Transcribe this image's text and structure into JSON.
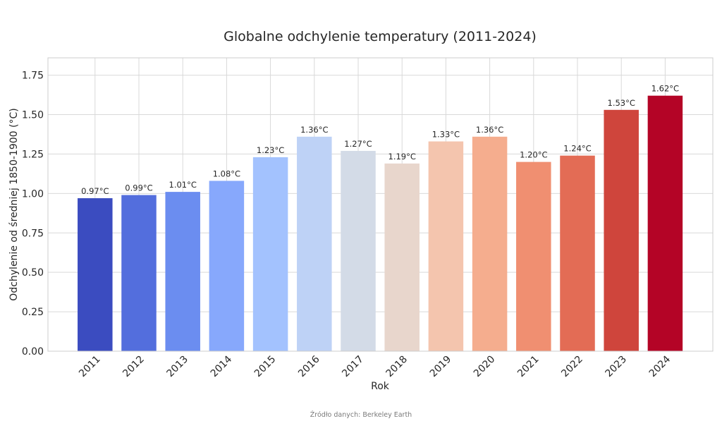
{
  "chart_data": {
    "type": "bar",
    "title": "Globalne odchylenie temperatury (2011-2024)",
    "xlabel": "Rok",
    "ylabel": "Odchylenie od średniej 1850-1900 (°C)",
    "categories": [
      "2011",
      "2012",
      "2013",
      "2014",
      "2015",
      "2016",
      "2017",
      "2018",
      "2019",
      "2020",
      "2021",
      "2022",
      "2023",
      "2024"
    ],
    "values": [
      0.97,
      0.99,
      1.01,
      1.08,
      1.23,
      1.36,
      1.27,
      1.19,
      1.33,
      1.36,
      1.2,
      1.24,
      1.53,
      1.62
    ],
    "data_labels": [
      "0.97°C",
      "0.99°C",
      "1.01°C",
      "1.08°C",
      "1.23°C",
      "1.36°C",
      "1.27°C",
      "1.19°C",
      "1.33°C",
      "1.36°C",
      "1.20°C",
      "1.24°C",
      "1.53°C",
      "1.62°C"
    ],
    "colors": [
      "#3b4cc0",
      "#536edd",
      "#6b8df0",
      "#87a8fc",
      "#a3c2fe",
      "#bed2f6",
      "#d3dbe7",
      "#e8d6cc",
      "#f4c5ae",
      "#f5ad8e",
      "#f08f71",
      "#e36c55",
      "#cf453c",
      "#b40426"
    ],
    "ylim": [
      0,
      1.86
    ],
    "yticks": [
      0.0,
      0.25,
      0.5,
      0.75,
      1.0,
      1.25,
      1.5,
      1.75
    ],
    "ytick_labels": [
      "0.00",
      "0.25",
      "0.50",
      "0.75",
      "1.00",
      "1.25",
      "1.50",
      "1.75"
    ],
    "grid": true,
    "source": "Źródło danych: Berkeley Earth"
  }
}
